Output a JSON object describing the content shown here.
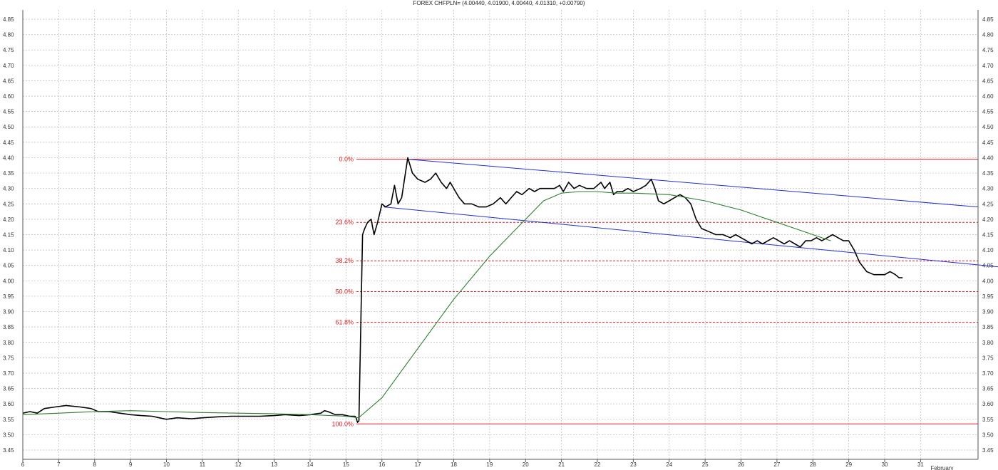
{
  "chart_data": {
    "type": "line",
    "title": "FOREX CHFPLN= (4.00440, 4.01900, 4.00440, 4.01310, +0.00790)",
    "xlabel": "",
    "ylabel": "",
    "ylim": [
      3.42,
      4.88
    ],
    "xlim": [
      6,
      32.6
    ],
    "y_ticks": [
      3.45,
      3.5,
      3.55,
      3.6,
      3.65,
      3.7,
      3.75,
      3.8,
      3.85,
      3.9,
      3.95,
      4.0,
      4.05,
      4.1,
      4.15,
      4.2,
      4.25,
      4.3,
      4.35,
      4.4,
      4.45,
      4.5,
      4.55,
      4.6,
      4.65,
      4.7,
      4.75,
      4.8,
      4.85
    ],
    "x_tick_labels": [
      {
        "x": 6,
        "label": "6"
      },
      {
        "x": 7,
        "label": "7"
      },
      {
        "x": 8,
        "label": "8"
      },
      {
        "x": 9,
        "label": "9"
      },
      {
        "x": 10,
        "label": "10"
      },
      {
        "x": 11,
        "label": "11"
      },
      {
        "x": 12,
        "label": "12"
      },
      {
        "x": 13,
        "label": "13"
      },
      {
        "x": 14,
        "label": "14"
      },
      {
        "x": 15,
        "label": "15"
      },
      {
        "x": 16,
        "label": "16"
      },
      {
        "x": 17,
        "label": "17"
      },
      {
        "x": 18,
        "label": "18"
      },
      {
        "x": 19,
        "label": "19"
      },
      {
        "x": 20,
        "label": "20"
      },
      {
        "x": 21,
        "label": "21"
      },
      {
        "x": 22,
        "label": "22"
      },
      {
        "x": 23,
        "label": "23"
      },
      {
        "x": 24,
        "label": "24"
      },
      {
        "x": 25,
        "label": "25"
      },
      {
        "x": 26,
        "label": "26"
      },
      {
        "x": 27,
        "label": "27"
      },
      {
        "x": 28,
        "label": "28"
      },
      {
        "x": 29,
        "label": "29"
      },
      {
        "x": 30,
        "label": "30"
      },
      {
        "x": 31,
        "label": "31"
      }
    ],
    "month_label": "February",
    "grid": true,
    "series": [
      {
        "key": "price",
        "color": "#000000",
        "points": [
          [
            6.0,
            3.57
          ],
          [
            6.2,
            3.575
          ],
          [
            6.4,
            3.57
          ],
          [
            6.6,
            3.585
          ],
          [
            6.9,
            3.59
          ],
          [
            7.2,
            3.595
          ],
          [
            7.6,
            3.59
          ],
          [
            7.9,
            3.585
          ],
          [
            8.1,
            3.575
          ],
          [
            8.4,
            3.575
          ],
          [
            8.7,
            3.57
          ],
          [
            9.0,
            3.565
          ],
          [
            9.3,
            3.562
          ],
          [
            9.6,
            3.56
          ],
          [
            9.8,
            3.555
          ],
          [
            10.0,
            3.55
          ],
          [
            10.3,
            3.555
          ],
          [
            10.7,
            3.552
          ],
          [
            11.0,
            3.555
          ],
          [
            11.4,
            3.558
          ],
          [
            11.8,
            3.56
          ],
          [
            12.2,
            3.56
          ],
          [
            12.6,
            3.56
          ],
          [
            13.0,
            3.562
          ],
          [
            13.3,
            3.565
          ],
          [
            13.7,
            3.562
          ],
          [
            14.0,
            3.565
          ],
          [
            14.3,
            3.57
          ],
          [
            14.4,
            3.578
          ],
          [
            14.5,
            3.575
          ],
          [
            14.7,
            3.565
          ],
          [
            14.9,
            3.565
          ],
          [
            15.1,
            3.56
          ],
          [
            15.25,
            3.56
          ],
          [
            15.28,
            3.555
          ],
          [
            15.32,
            3.54
          ],
          [
            15.36,
            3.545
          ],
          [
            15.42,
            3.9
          ],
          [
            15.46,
            4.15
          ],
          [
            15.52,
            4.17
          ],
          [
            15.6,
            4.19
          ],
          [
            15.7,
            4.2
          ],
          [
            15.78,
            4.15
          ],
          [
            15.88,
            4.19
          ],
          [
            16.0,
            4.25
          ],
          [
            16.1,
            4.24
          ],
          [
            16.25,
            4.25
          ],
          [
            16.35,
            4.31
          ],
          [
            16.45,
            4.25
          ],
          [
            16.55,
            4.27
          ],
          [
            16.72,
            4.4
          ],
          [
            16.85,
            4.35
          ],
          [
            17.0,
            4.33
          ],
          [
            17.2,
            4.32
          ],
          [
            17.35,
            4.33
          ],
          [
            17.5,
            4.35
          ],
          [
            17.65,
            4.32
          ],
          [
            17.8,
            4.3
          ],
          [
            17.9,
            4.32
          ],
          [
            18.05,
            4.29
          ],
          [
            18.15,
            4.27
          ],
          [
            18.3,
            4.25
          ],
          [
            18.5,
            4.25
          ],
          [
            18.7,
            4.24
          ],
          [
            18.9,
            4.24
          ],
          [
            19.1,
            4.25
          ],
          [
            19.3,
            4.27
          ],
          [
            19.45,
            4.25
          ],
          [
            19.6,
            4.27
          ],
          [
            19.75,
            4.29
          ],
          [
            19.9,
            4.28
          ],
          [
            20.1,
            4.3
          ],
          [
            20.25,
            4.29
          ],
          [
            20.4,
            4.3
          ],
          [
            20.6,
            4.3
          ],
          [
            20.8,
            4.3
          ],
          [
            20.95,
            4.31
          ],
          [
            21.05,
            4.29
          ],
          [
            21.2,
            4.32
          ],
          [
            21.35,
            4.3
          ],
          [
            21.5,
            4.31
          ],
          [
            21.7,
            4.3
          ],
          [
            21.9,
            4.3
          ],
          [
            22.1,
            4.32
          ],
          [
            22.2,
            4.3
          ],
          [
            22.35,
            4.32
          ],
          [
            22.45,
            4.28
          ],
          [
            22.55,
            4.29
          ],
          [
            22.7,
            4.29
          ],
          [
            22.85,
            4.3
          ],
          [
            23.0,
            4.29
          ],
          [
            23.2,
            4.3
          ],
          [
            23.35,
            4.31
          ],
          [
            23.5,
            4.33
          ],
          [
            23.6,
            4.3
          ],
          [
            23.7,
            4.26
          ],
          [
            23.85,
            4.25
          ],
          [
            24.0,
            4.26
          ],
          [
            24.15,
            4.27
          ],
          [
            24.3,
            4.28
          ],
          [
            24.45,
            4.27
          ],
          [
            24.6,
            4.25
          ],
          [
            24.75,
            4.2
          ],
          [
            24.9,
            4.17
          ],
          [
            25.1,
            4.16
          ],
          [
            25.3,
            4.15
          ],
          [
            25.5,
            4.15
          ],
          [
            25.7,
            4.14
          ],
          [
            25.85,
            4.15
          ],
          [
            26.0,
            4.14
          ],
          [
            26.15,
            4.13
          ],
          [
            26.3,
            4.12
          ],
          [
            26.45,
            4.13
          ],
          [
            26.6,
            4.12
          ],
          [
            26.75,
            4.13
          ],
          [
            26.9,
            4.14
          ],
          [
            27.05,
            4.13
          ],
          [
            27.2,
            4.12
          ],
          [
            27.35,
            4.13
          ],
          [
            27.5,
            4.12
          ],
          [
            27.65,
            4.11
          ],
          [
            27.8,
            4.13
          ],
          [
            27.95,
            4.13
          ],
          [
            28.1,
            4.14
          ],
          [
            28.25,
            4.13
          ],
          [
            28.4,
            4.14
          ],
          [
            28.55,
            4.15
          ],
          [
            28.7,
            4.14
          ],
          [
            28.85,
            4.13
          ],
          [
            29.0,
            4.13
          ],
          [
            29.15,
            4.1
          ],
          [
            29.3,
            4.06
          ],
          [
            29.5,
            4.03
          ],
          [
            29.7,
            4.02
          ],
          [
            29.85,
            4.02
          ],
          [
            30.0,
            4.02
          ],
          [
            30.15,
            4.03
          ],
          [
            30.3,
            4.02
          ],
          [
            30.4,
            4.01
          ],
          [
            30.5,
            4.01
          ]
        ]
      },
      {
        "key": "moving-average",
        "color": "#2e7d32",
        "points": [
          [
            6.0,
            3.565
          ],
          [
            7.0,
            3.57
          ],
          [
            8.0,
            3.575
          ],
          [
            9.0,
            3.578
          ],
          [
            10.0,
            3.575
          ],
          [
            11.0,
            3.572
          ],
          [
            12.0,
            3.57
          ],
          [
            13.0,
            3.568
          ],
          [
            14.0,
            3.565
          ],
          [
            15.0,
            3.56
          ],
          [
            15.35,
            3.555
          ],
          [
            16.0,
            3.62
          ],
          [
            17.0,
            3.78
          ],
          [
            18.0,
            3.94
          ],
          [
            19.0,
            4.08
          ],
          [
            20.0,
            4.2
          ],
          [
            20.5,
            4.26
          ],
          [
            21.0,
            4.285
          ],
          [
            21.5,
            4.29
          ],
          [
            22.0,
            4.29
          ],
          [
            22.5,
            4.285
          ],
          [
            23.0,
            4.285
          ],
          [
            24.0,
            4.28
          ],
          [
            25.0,
            4.26
          ],
          [
            26.0,
            4.23
          ],
          [
            26.5,
            4.21
          ],
          [
            27.0,
            4.19
          ],
          [
            27.5,
            4.17
          ],
          [
            28.0,
            4.15
          ],
          [
            28.5,
            4.13
          ]
        ]
      }
    ],
    "trend_lines": [
      {
        "from": [
          16.72,
          4.395
        ],
        "to": [
          32.6,
          4.24
        ]
      },
      {
        "from": [
          16.05,
          4.24
        ],
        "to": [
          33.2,
          4.045
        ]
      }
    ],
    "fibonacci": {
      "color": "#e02020",
      "label_x": 15.25,
      "levels": [
        {
          "label": "0.0%",
          "value": 4.395,
          "solid": true
        },
        {
          "label": "23.6%",
          "value": 4.19,
          "solid": false
        },
        {
          "label": "38.2%",
          "value": 4.065,
          "solid": false
        },
        {
          "label": "50.0%",
          "value": 3.965,
          "solid": false
        },
        {
          "label": "61.8%",
          "value": 3.865,
          "solid": false
        },
        {
          "label": "100.0%",
          "value": 3.535,
          "solid": true
        }
      ]
    }
  }
}
